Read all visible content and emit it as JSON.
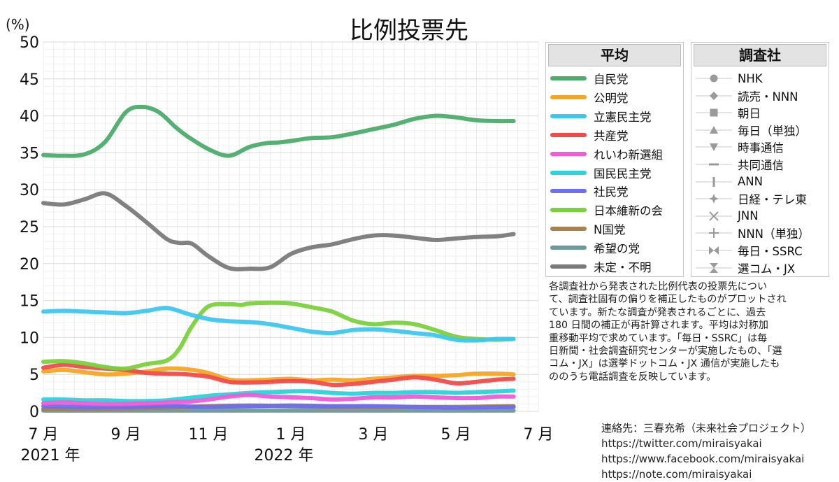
{
  "chart_data": {
    "type": "line",
    "title": "比例投票先",
    "ylabel": "(%)",
    "ylim": [
      0,
      50
    ],
    "yticks": [
      0,
      5,
      10,
      15,
      20,
      25,
      30,
      35,
      40,
      45,
      50
    ],
    "x_tick_labels": [
      "7 月",
      "9 月",
      "11 月",
      "1 月",
      "3 月",
      "5 月",
      "7 月"
    ],
    "x_year_labels": [
      "2021 年",
      "2022 年"
    ],
    "x_unit": "months since 2021-07-01",
    "grid": true,
    "series": [
      {
        "name": "自民党",
        "color": "#4cad6b",
        "x": [
          0,
          0.4,
          1.0,
          1.5,
          2.0,
          2.4,
          2.8,
          3.2,
          3.5,
          4.0,
          4.5,
          5.0,
          5.4,
          5.7,
          6.0,
          6.5,
          7.0,
          7.5,
          8.0,
          8.5,
          9.0,
          9.5,
          10.0,
          10.5,
          11.0,
          11.4
        ],
        "values": [
          34.7,
          34.6,
          34.8,
          36.5,
          40.5,
          41.2,
          40.5,
          38.5,
          37.2,
          35.5,
          34.6,
          35.8,
          36.3,
          36.4,
          36.6,
          37.0,
          37.1,
          37.6,
          38.2,
          38.8,
          39.6,
          40.0,
          39.8,
          39.4,
          39.3,
          39.3
        ]
      },
      {
        "name": "公明党",
        "color": "#f5a623",
        "x": [
          0,
          0.5,
          1.0,
          1.5,
          2.0,
          2.5,
          3.0,
          3.5,
          4.0,
          4.5,
          5.0,
          5.5,
          6.0,
          6.5,
          7.0,
          7.5,
          8.0,
          8.5,
          9.0,
          9.5,
          10.0,
          10.5,
          11.0,
          11.4
        ],
        "values": [
          5.4,
          5.6,
          5.3,
          5.0,
          5.1,
          5.4,
          5.8,
          5.7,
          5.2,
          4.3,
          4.2,
          4.3,
          4.4,
          4.2,
          4.3,
          4.2,
          4.4,
          4.6,
          4.8,
          4.8,
          4.9,
          5.1,
          5.1,
          5.0
        ]
      },
      {
        "name": "立憲民主党",
        "color": "#3ec6ef",
        "x": [
          0,
          0.5,
          1.0,
          1.5,
          2.0,
          2.5,
          3.0,
          3.5,
          4.0,
          4.5,
          5.0,
          5.5,
          6.0,
          6.5,
          7.0,
          7.5,
          8.0,
          8.5,
          9.0,
          9.5,
          10.0,
          10.5,
          11.0,
          11.4
        ],
        "values": [
          13.5,
          13.6,
          13.5,
          13.4,
          13.3,
          13.6,
          14.0,
          13.2,
          12.5,
          12.2,
          12.1,
          11.8,
          11.3,
          10.8,
          10.6,
          11.0,
          11.1,
          10.9,
          10.6,
          10.3,
          9.7,
          9.6,
          9.8,
          9.8
        ]
      },
      {
        "name": "共産党",
        "color": "#ef4b4b",
        "x": [
          0,
          0.5,
          1.0,
          1.5,
          2.0,
          2.5,
          3.0,
          3.5,
          4.0,
          4.5,
          5.0,
          5.5,
          6.0,
          6.5,
          7.0,
          7.5,
          8.0,
          8.5,
          9.0,
          9.5,
          10.0,
          10.5,
          11.0,
          11.4
        ],
        "values": [
          5.9,
          6.3,
          6.0,
          5.8,
          5.6,
          5.2,
          5.1,
          5.0,
          4.7,
          4.0,
          3.9,
          4.0,
          4.1,
          4.0,
          3.6,
          3.7,
          4.0,
          4.3,
          4.6,
          4.3,
          3.8,
          4.0,
          4.3,
          4.4
        ]
      },
      {
        "name": "れいわ新選組",
        "color": "#f05bd6",
        "x": [
          0,
          0.5,
          1.0,
          1.5,
          2.0,
          2.5,
          3.0,
          3.5,
          4.0,
          4.5,
          5.0,
          5.5,
          6.0,
          6.5,
          7.0,
          7.5,
          8.0,
          8.5,
          9.0,
          9.5,
          10.0,
          10.5,
          11.0,
          11.4
        ],
        "values": [
          1.1,
          1.2,
          1.1,
          1.0,
          1.0,
          1.1,
          1.2,
          1.3,
          1.6,
          2.0,
          2.2,
          2.0,
          1.9,
          1.8,
          1.6,
          1.7,
          1.9,
          1.9,
          2.0,
          1.9,
          1.8,
          1.8,
          2.0,
          2.0
        ]
      },
      {
        "name": "国民民主党",
        "color": "#2cd3d9",
        "x": [
          0,
          0.5,
          1.0,
          1.5,
          2.0,
          2.5,
          3.0,
          3.5,
          4.0,
          4.5,
          5.0,
          5.5,
          6.0,
          6.5,
          7.0,
          7.5,
          8.0,
          8.5,
          9.0,
          9.5,
          10.0,
          10.5,
          11.0,
          11.4
        ],
        "values": [
          1.6,
          1.6,
          1.5,
          1.5,
          1.4,
          1.4,
          1.5,
          1.8,
          2.1,
          2.3,
          2.5,
          2.6,
          2.7,
          2.7,
          2.5,
          2.4,
          2.5,
          2.5,
          2.6,
          2.6,
          2.5,
          2.6,
          2.7,
          2.8
        ]
      },
      {
        "name": "社民党",
        "color": "#6b6ff0",
        "x": [
          0,
          1.0,
          2.0,
          3.0,
          4.0,
          5.0,
          6.0,
          7.0,
          8.0,
          9.0,
          10.0,
          11.4
        ],
        "values": [
          0.7,
          0.6,
          0.6,
          0.7,
          0.6,
          0.7,
          0.8,
          0.7,
          0.7,
          0.6,
          0.5,
          0.6
        ]
      },
      {
        "name": "日本維新の会",
        "color": "#7bd13c",
        "x": [
          0,
          0.5,
          1.0,
          1.5,
          2.0,
          2.5,
          3.0,
          3.3,
          3.6,
          4.0,
          4.5,
          4.8,
          5.0,
          5.5,
          6.0,
          6.5,
          7.0,
          7.5,
          8.0,
          8.5,
          9.0,
          9.5,
          10.0,
          10.5,
          11.0,
          11.4
        ],
        "values": [
          6.7,
          6.8,
          6.5,
          6.0,
          5.8,
          6.4,
          6.9,
          8.5,
          11.5,
          14.2,
          14.5,
          14.4,
          14.6,
          14.7,
          14.6,
          14.1,
          13.5,
          12.3,
          11.8,
          12.0,
          11.8,
          11.0,
          10.1,
          9.8,
          9.7,
          9.8
        ]
      },
      {
        "name": "N国党",
        "color": "#a7814f",
        "x": [
          0,
          1.0,
          2.0,
          3.0,
          4.0,
          5.0,
          6.0,
          7.0,
          8.0,
          9.0,
          10.0,
          11.4
        ],
        "values": [
          0.3,
          0.3,
          0.4,
          0.5,
          0.7,
          0.8,
          0.7,
          0.6,
          0.6,
          0.6,
          0.6,
          0.7
        ]
      },
      {
        "name": "希望の党",
        "color": "#6e9999",
        "x": [
          0,
          2.0,
          4.0,
          6.0,
          8.0,
          10.0,
          11.4
        ],
        "values": [
          0.1,
          0.1,
          0.1,
          0.1,
          0.1,
          0.1,
          0.1
        ]
      },
      {
        "name": "未定・不明",
        "color": "#7a7a7a",
        "x": [
          0,
          0.5,
          1.0,
          1.5,
          2.0,
          2.5,
          3.0,
          3.3,
          3.6,
          4.0,
          4.5,
          5.0,
          5.5,
          6.0,
          6.5,
          7.0,
          7.5,
          8.0,
          8.5,
          9.0,
          9.5,
          10.0,
          10.5,
          11.0,
          11.4
        ],
        "values": [
          28.2,
          28.0,
          28.7,
          29.5,
          27.8,
          25.6,
          23.3,
          22.8,
          22.7,
          21.0,
          19.4,
          19.3,
          19.5,
          21.3,
          22.2,
          22.6,
          23.3,
          23.8,
          23.8,
          23.5,
          23.2,
          23.4,
          23.6,
          23.7,
          24.0
        ]
      }
    ]
  },
  "legend_parties": {
    "title": "平均",
    "items": [
      {
        "label": "自民党",
        "color": "#4cad6b"
      },
      {
        "label": "公明党",
        "color": "#f5a623"
      },
      {
        "label": "立憲民主党",
        "color": "#3ec6ef"
      },
      {
        "label": "共産党",
        "color": "#ef4b4b"
      },
      {
        "label": "れいわ新選組",
        "color": "#f05bd6"
      },
      {
        "label": "国民民主党",
        "color": "#2cd3d9"
      },
      {
        "label": "社民党",
        "color": "#6b6ff0"
      },
      {
        "label": "日本維新の会",
        "color": "#7bd13c"
      },
      {
        "label": "N国党",
        "color": "#a7814f"
      },
      {
        "label": "希望の党",
        "color": "#6e9999"
      },
      {
        "label": "未定・不明",
        "color": "#7a7a7a"
      }
    ]
  },
  "legend_pollsters": {
    "title": "調査社",
    "items": [
      {
        "label": "NHK",
        "marker": "circle"
      },
      {
        "label": "読売・NNN",
        "marker": "diamond"
      },
      {
        "label": "朝日",
        "marker": "square"
      },
      {
        "label": "毎日（単独）",
        "marker": "triangle-up"
      },
      {
        "label": "時事通信",
        "marker": "triangle-down"
      },
      {
        "label": "共同通信",
        "marker": "dash"
      },
      {
        "label": "ANN",
        "marker": "bar"
      },
      {
        "label": "日経・テレ東",
        "marker": "star"
      },
      {
        "label": "JNN",
        "marker": "cross"
      },
      {
        "label": "NNN（単独）",
        "marker": "plus"
      },
      {
        "label": "毎日・SSRC",
        "marker": "bowtie-h"
      },
      {
        "label": "選コム・JX",
        "marker": "bowtie-v"
      }
    ]
  },
  "note_lines": [
    "各調査社から発表された比例代表の投票先につい",
    "て、調査社固有の偏りを補正したものがプロットされ",
    "ています。新たな調査が発表されるごとに、過去",
    "180 日間の補正が再計算されます。平均は対称加",
    "重移動平均で求めています。「毎日・SSRC」は毎",
    "日新聞・社会調査研究センターが実施したもの、「選",
    "コム・JX」は選挙ドットコム・JX 通信が実施したも",
    "ののうち電話調査を反映しています。"
  ],
  "contact": {
    "label": "連絡先：三春充希（未来社会プロジェクト）",
    "links": [
      "https://twitter.com/miraisyakai",
      "https://www.facebook.com/miraisyakai",
      "https://note.com/miraisyakai"
    ]
  }
}
